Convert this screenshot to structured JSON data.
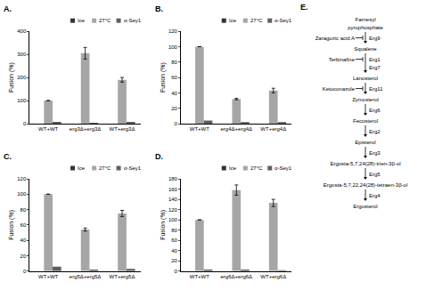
{
  "chart_data": [
    {
      "type": "bar",
      "title": "A.",
      "y_label": "Fusion (%)",
      "categories": [
        "WT+WT",
        "erg3Δ+erg3Δ",
        "WT+erg3Δ"
      ],
      "series": [
        {
          "name": "Ice",
          "color": "#333333",
          "values": [
            0,
            0,
            0
          ]
        },
        {
          "name": "27°C",
          "color": "#a6a6a6",
          "values": [
            100,
            305,
            190
          ],
          "errors": [
            0,
            25,
            10
          ]
        },
        {
          "name": "α-Sey1",
          "color": "#5f5f5f",
          "values": [
            8,
            4,
            8
          ]
        }
      ],
      "ylim": [
        0,
        400
      ],
      "yticks": [
        0,
        100,
        200,
        300,
        400
      ],
      "grid": false,
      "legend": "top right"
    },
    {
      "type": "bar",
      "title": "B.",
      "y_label": "Fusion (%)",
      "categories": [
        "WT+WT",
        "erg4Δ+erg4Δ",
        "WT+erg4Δ"
      ],
      "series": [
        {
          "name": "Ice",
          "color": "#333333",
          "values": [
            0,
            0,
            0
          ]
        },
        {
          "name": "27°C",
          "color": "#a6a6a6",
          "values": [
            100,
            32,
            43
          ],
          "errors": [
            0,
            1,
            3
          ]
        },
        {
          "name": "α-Sey1",
          "color": "#5f5f5f",
          "values": [
            4,
            2,
            2
          ]
        }
      ],
      "ylim": [
        0,
        120
      ],
      "yticks": [
        0,
        20,
        40,
        60,
        80,
        100,
        120
      ],
      "grid": false,
      "legend": "top right"
    },
    {
      "type": "bar",
      "title": "C.",
      "y_label": "Fusion (%)",
      "categories": [
        "WT+WT",
        "erg5Δ+erg5Δ",
        "WT+erg5Δ"
      ],
      "series": [
        {
          "name": "Ice",
          "color": "#333333",
          "values": [
            0,
            0,
            0
          ]
        },
        {
          "name": "27°C",
          "color": "#a6a6a6",
          "values": [
            100,
            54,
            75
          ],
          "errors": [
            0,
            2,
            4
          ]
        },
        {
          "name": "α-Sey1",
          "color": "#5f5f5f",
          "values": [
            6,
            2,
            3
          ]
        }
      ],
      "ylim": [
        0,
        120
      ],
      "yticks": [
        0,
        20,
        40,
        60,
        80,
        100,
        120
      ],
      "grid": false,
      "legend": "top right"
    },
    {
      "type": "bar",
      "title": "D.",
      "y_label": "Fusion (%)",
      "categories": [
        "WT+WT",
        "erg6Δ+erg6Δ",
        "WT+erg6Δ"
      ],
      "series": [
        {
          "name": "Ice",
          "color": "#333333",
          "values": [
            0,
            0,
            0
          ]
        },
        {
          "name": "27°C",
          "color": "#a6a6a6",
          "values": [
            100,
            158,
            133
          ],
          "errors": [
            0,
            10,
            7
          ]
        },
        {
          "name": "α-Sey1",
          "color": "#5f5f5f",
          "values": [
            3,
            3,
            2
          ]
        }
      ],
      "ylim": [
        0,
        180
      ],
      "yticks": [
        0,
        20,
        40,
        60,
        80,
        100,
        120,
        140,
        160,
        180
      ],
      "grid": false,
      "legend": "top right"
    }
  ],
  "diagram": {
    "label": "E.",
    "nodes": [
      [
        "Farnesyl",
        "pyrophosphate"
      ],
      [
        "Squalene"
      ],
      [
        "Lanosterol"
      ],
      [
        "Zymosterol"
      ],
      [
        "Fecosterol"
      ],
      [
        "Episterol"
      ],
      [
        "Ergosta-5,7,24(28)-trien-3β-ol"
      ],
      [
        "Ergosta-5,7,22,24(28)-tetraen-3β-ol"
      ],
      [
        "Ergosterol"
      ]
    ],
    "steps": [
      {
        "enzymes": [
          "Erg9"
        ],
        "inhibitor": "Zaragozic acid A"
      },
      {
        "enzymes": [
          "Erg1",
          "Erg7"
        ],
        "inhibitor": "Terbinafine"
      },
      {
        "enzymes": [
          "Erg11"
        ],
        "inhibitor": "Ketoconazole"
      },
      {
        "enzymes": [
          "Erg6"
        ]
      },
      {
        "enzymes": [
          "Erg2"
        ]
      },
      {
        "enzymes": [
          "Erg3"
        ]
      },
      {
        "enzymes": [
          "Erg5"
        ]
      },
      {
        "enzymes": [
          "Erg4"
        ]
      }
    ]
  }
}
